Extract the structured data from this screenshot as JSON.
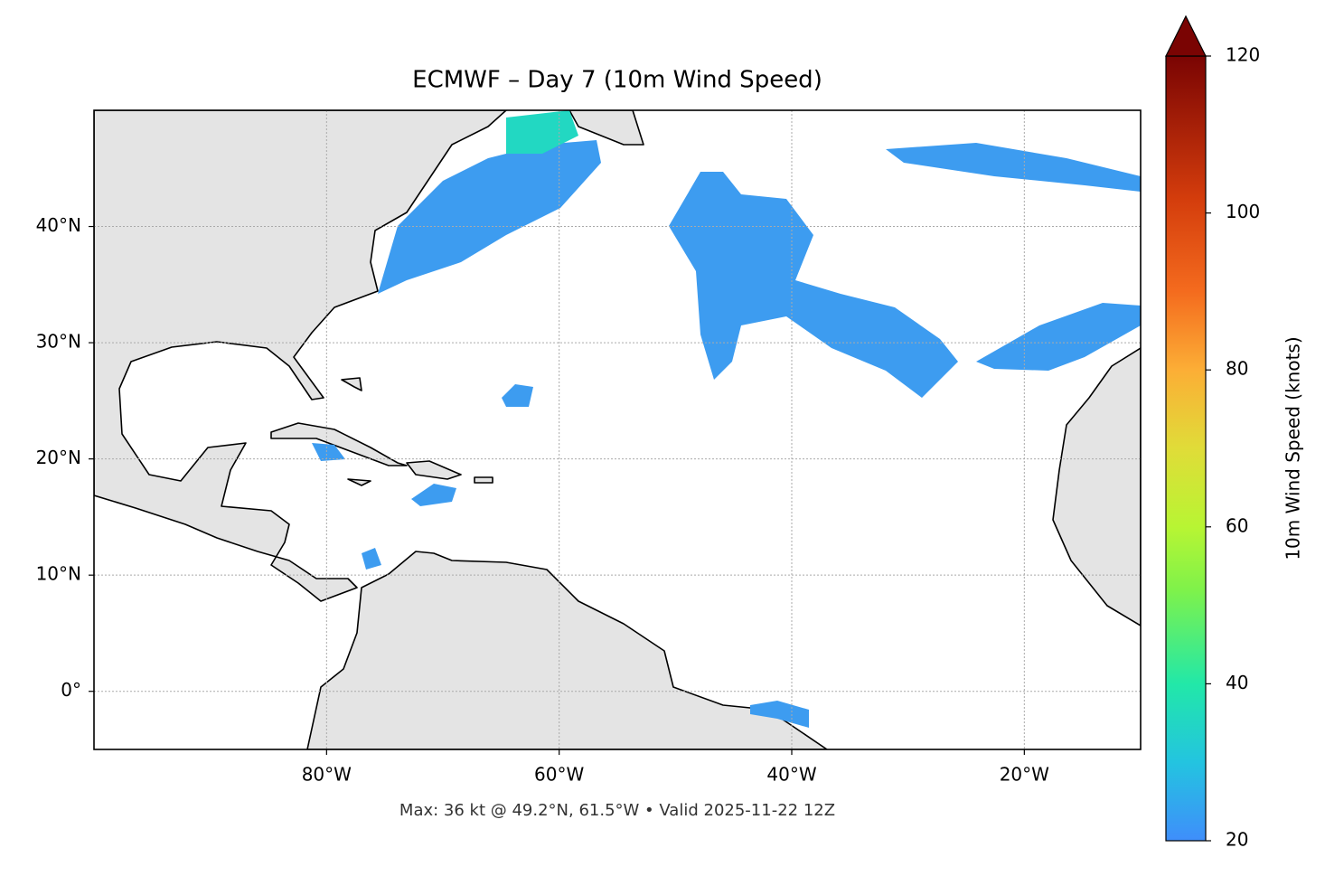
{
  "chart_data": {
    "type": "map",
    "title": "ECMWF – Day 7 (10m Wind Speed)",
    "subtitle": "Max: 36 kt @ 49.2°N, 61.5°W • Valid 2025-11-22 12Z",
    "xlim": [
      -100,
      -10
    ],
    "ylim": [
      -5,
      50
    ],
    "xticks": [
      {
        "value": -80,
        "label": "80°W"
      },
      {
        "value": -60,
        "label": "60°W"
      },
      {
        "value": -40,
        "label": "40°W"
      },
      {
        "value": -20,
        "label": "20°W"
      }
    ],
    "yticks": [
      {
        "value": 0,
        "label": "0°"
      },
      {
        "value": 10,
        "label": "10°N"
      },
      {
        "value": 20,
        "label": "20°N"
      },
      {
        "value": 30,
        "label": "30°N"
      },
      {
        "value": 40,
        "label": "40°N"
      }
    ],
    "grid": true,
    "colorbar": {
      "label": "10m Wind Speed (knots)",
      "lim": [
        20,
        120
      ],
      "ticks": [
        20,
        40,
        60,
        80,
        100,
        120
      ],
      "extend": "max"
    }
  }
}
